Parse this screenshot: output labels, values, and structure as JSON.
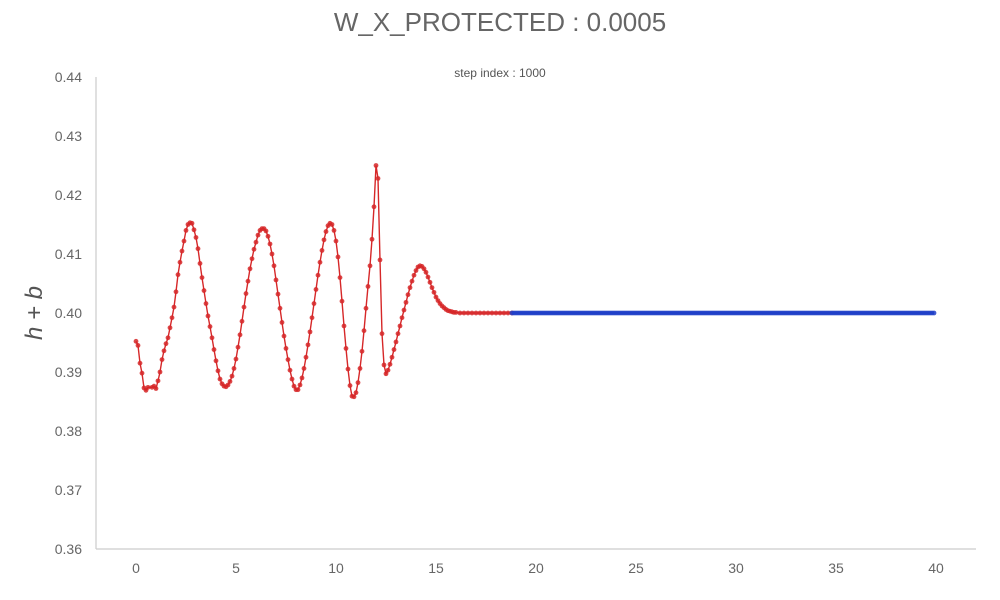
{
  "chart_data": {
    "type": "line",
    "title": "W_X_PROTECTED : 0.0005",
    "subtitle": "step index : 1000",
    "xlabel": "",
    "ylabel": "h + b",
    "xlim": [
      -2,
      42
    ],
    "ylim": [
      0.36,
      0.44
    ],
    "x_ticks": [
      0,
      5,
      10,
      15,
      20,
      25,
      30,
      35,
      40
    ],
    "y_ticks": [
      "0.36",
      "0.37",
      "0.38",
      "0.39",
      "0.40",
      "0.41",
      "0.42",
      "0.43",
      "0.44"
    ],
    "grid": false,
    "colors": {
      "red_series": "#d62728",
      "blue_series": "#2040c8",
      "axis": "#cccccc"
    },
    "series": [
      {
        "color": "#d62728",
        "markers": true,
        "points": [
          [
            0.0,
            0.3952
          ],
          [
            0.1,
            0.3945
          ],
          [
            0.2,
            0.3915
          ],
          [
            0.3,
            0.3898
          ],
          [
            0.4,
            0.3873
          ],
          [
            0.5,
            0.3869
          ],
          [
            0.6,
            0.3874
          ],
          [
            0.8,
            0.3874
          ],
          [
            0.9,
            0.3876
          ],
          [
            1.0,
            0.3872
          ],
          [
            1.1,
            0.3885
          ],
          [
            1.2,
            0.39
          ],
          [
            1.3,
            0.3921
          ],
          [
            1.4,
            0.3936
          ],
          [
            1.5,
            0.3948
          ],
          [
            1.6,
            0.3958
          ],
          [
            1.7,
            0.3975
          ],
          [
            1.8,
            0.3992
          ],
          [
            1.9,
            0.401
          ],
          [
            2.0,
            0.4036
          ],
          [
            2.1,
            0.4065
          ],
          [
            2.2,
            0.4086
          ],
          [
            2.3,
            0.4105
          ],
          [
            2.4,
            0.4122
          ],
          [
            2.5,
            0.414
          ],
          [
            2.6,
            0.415
          ],
          [
            2.7,
            0.4153
          ],
          [
            2.8,
            0.4152
          ],
          [
            2.9,
            0.4141
          ],
          [
            3.0,
            0.4128
          ],
          [
            3.1,
            0.4109
          ],
          [
            3.2,
            0.4084
          ],
          [
            3.3,
            0.406
          ],
          [
            3.4,
            0.4038
          ],
          [
            3.5,
            0.4016
          ],
          [
            3.6,
            0.3995
          ],
          [
            3.7,
            0.3977
          ],
          [
            3.8,
            0.3958
          ],
          [
            3.9,
            0.3938
          ],
          [
            4.0,
            0.3919
          ],
          [
            4.1,
            0.3902
          ],
          [
            4.2,
            0.3888
          ],
          [
            4.3,
            0.388
          ],
          [
            4.4,
            0.3876
          ],
          [
            4.5,
            0.3875
          ],
          [
            4.6,
            0.3878
          ],
          [
            4.7,
            0.3884
          ],
          [
            4.8,
            0.3893
          ],
          [
            4.9,
            0.3906
          ],
          [
            5.0,
            0.3922
          ],
          [
            5.1,
            0.3942
          ],
          [
            5.2,
            0.3963
          ],
          [
            5.3,
            0.3986
          ],
          [
            5.4,
            0.401
          ],
          [
            5.5,
            0.4033
          ],
          [
            5.6,
            0.4054
          ],
          [
            5.7,
            0.4075
          ],
          [
            5.8,
            0.4092
          ],
          [
            5.9,
            0.4108
          ],
          [
            6.0,
            0.412
          ],
          [
            6.1,
            0.4132
          ],
          [
            6.2,
            0.414
          ],
          [
            6.3,
            0.4143
          ],
          [
            6.4,
            0.4143
          ],
          [
            6.5,
            0.4139
          ],
          [
            6.6,
            0.413
          ],
          [
            6.7,
            0.4117
          ],
          [
            6.8,
            0.41
          ],
          [
            6.9,
            0.408
          ],
          [
            7.0,
            0.4056
          ],
          [
            7.1,
            0.4032
          ],
          [
            7.2,
            0.4008
          ],
          [
            7.3,
            0.3984
          ],
          [
            7.4,
            0.3961
          ],
          [
            7.5,
            0.394
          ],
          [
            7.6,
            0.3921
          ],
          [
            7.7,
            0.3903
          ],
          [
            7.8,
            0.3888
          ],
          [
            7.9,
            0.3876
          ],
          [
            8.0,
            0.387
          ],
          [
            8.1,
            0.387
          ],
          [
            8.2,
            0.3878
          ],
          [
            8.3,
            0.389
          ],
          [
            8.4,
            0.3906
          ],
          [
            8.5,
            0.3925
          ],
          [
            8.6,
            0.3946
          ],
          [
            8.7,
            0.3968
          ],
          [
            8.8,
            0.3992
          ],
          [
            8.9,
            0.4016
          ],
          [
            9.0,
            0.404
          ],
          [
            9.1,
            0.4064
          ],
          [
            9.2,
            0.4086
          ],
          [
            9.3,
            0.4106
          ],
          [
            9.4,
            0.4124
          ],
          [
            9.5,
            0.4138
          ],
          [
            9.6,
            0.4148
          ],
          [
            9.7,
            0.4152
          ],
          [
            9.8,
            0.415
          ],
          [
            9.9,
            0.414
          ],
          [
            10.0,
            0.4122
          ],
          [
            10.1,
            0.4095
          ],
          [
            10.2,
            0.406
          ],
          [
            10.3,
            0.402
          ],
          [
            10.4,
            0.3978
          ],
          [
            10.5,
            0.394
          ],
          [
            10.6,
            0.3905
          ],
          [
            10.7,
            0.3877
          ],
          [
            10.8,
            0.3859
          ],
          [
            10.9,
            0.3858
          ],
          [
            11.0,
            0.3865
          ],
          [
            11.1,
            0.3882
          ],
          [
            11.2,
            0.3906
          ],
          [
            11.3,
            0.3935
          ],
          [
            11.4,
            0.397
          ],
          [
            11.5,
            0.4008
          ],
          [
            11.6,
            0.4045
          ],
          [
            11.7,
            0.408
          ],
          [
            11.8,
            0.4125
          ],
          [
            11.9,
            0.418
          ],
          [
            12.0,
            0.425
          ],
          [
            12.1,
            0.4228
          ],
          [
            12.2,
            0.409
          ],
          [
            12.3,
            0.3965
          ],
          [
            12.4,
            0.3912
          ],
          [
            12.5,
            0.3897
          ],
          [
            12.6,
            0.3903
          ],
          [
            12.7,
            0.3913
          ],
          [
            12.8,
            0.3925
          ],
          [
            12.9,
            0.3938
          ],
          [
            13.0,
            0.3951
          ],
          [
            13.1,
            0.3965
          ],
          [
            13.2,
            0.3978
          ],
          [
            13.3,
            0.3992
          ],
          [
            13.4,
            0.4005
          ],
          [
            13.5,
            0.4018
          ],
          [
            13.6,
            0.4031
          ],
          [
            13.7,
            0.4043
          ],
          [
            13.8,
            0.4054
          ],
          [
            13.9,
            0.4064
          ],
          [
            14.0,
            0.4072
          ],
          [
            14.1,
            0.4078
          ],
          [
            14.2,
            0.408
          ],
          [
            14.3,
            0.4079
          ],
          [
            14.4,
            0.4075
          ],
          [
            14.5,
            0.4069
          ],
          [
            14.6,
            0.4061
          ],
          [
            14.7,
            0.4052
          ],
          [
            14.8,
            0.4043
          ],
          [
            14.9,
            0.4035
          ],
          [
            15.0,
            0.4027
          ],
          [
            15.1,
            0.4021
          ],
          [
            15.2,
            0.4016
          ],
          [
            15.3,
            0.4012
          ],
          [
            15.4,
            0.4009
          ],
          [
            15.5,
            0.4006
          ],
          [
            15.6,
            0.4004
          ],
          [
            15.7,
            0.4003
          ],
          [
            15.8,
            0.4002
          ],
          [
            15.9,
            0.4001
          ],
          [
            16.0,
            0.4001
          ],
          [
            16.2,
            0.4
          ],
          [
            16.4,
            0.4
          ],
          [
            16.6,
            0.4
          ],
          [
            16.8,
            0.4
          ],
          [
            17.0,
            0.4
          ],
          [
            17.2,
            0.4
          ],
          [
            17.4,
            0.4
          ],
          [
            17.6,
            0.4
          ],
          [
            17.8,
            0.4
          ],
          [
            18.0,
            0.4
          ],
          [
            18.2,
            0.4
          ],
          [
            18.4,
            0.4
          ],
          [
            18.6,
            0.4
          ],
          [
            18.8,
            0.4
          ]
        ]
      },
      {
        "color": "#2040c8",
        "markers": true,
        "x_start": 18.8,
        "x_end": 39.9,
        "x_step": 0.1,
        "y_constant": 0.4
      }
    ]
  }
}
